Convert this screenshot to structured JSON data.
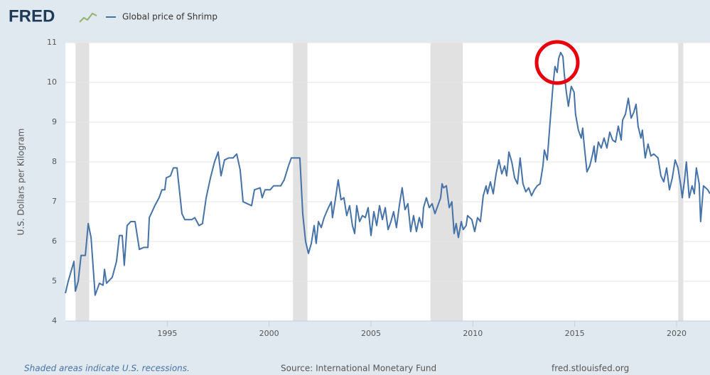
{
  "chart_data": {
    "type": "line",
    "logo": "FRED",
    "ylabel": "U.S. Dollars per Kilogram",
    "footnote": "Shaded areas indicate U.S. recessions.",
    "source": "Source: International Monetary Fund",
    "site": "fred.stlouisfed.org",
    "xlim": [
      1990,
      2021.64
    ],
    "ylim": [
      4,
      11
    ],
    "xticks": [
      1995,
      2000,
      2005,
      2010,
      2015,
      2020
    ],
    "yticks": [
      4,
      5,
      6,
      7,
      8,
      9,
      10,
      11
    ],
    "grid": true,
    "recession_color": "#e1e1e1",
    "recessions": [
      [
        1990.5,
        1991.17
      ],
      [
        2001.17,
        2001.88
      ],
      [
        2007.92,
        2009.5
      ],
      [
        2020.08,
        2020.33
      ]
    ],
    "x": [
      1990.0,
      1990.14,
      1990.42,
      1990.49,
      1990.63,
      1990.77,
      1990.98,
      1991.12,
      1991.26,
      1991.46,
      1991.67,
      1991.85,
      1991.92,
      1992.02,
      1992.3,
      1992.51,
      1992.65,
      1992.79,
      1992.89,
      1993.03,
      1993.21,
      1993.42,
      1993.63,
      1993.84,
      1994.05,
      1994.12,
      1994.39,
      1994.6,
      1994.74,
      1994.88,
      1994.95,
      1995.16,
      1995.3,
      1995.48,
      1995.72,
      1995.86,
      1996.21,
      1996.35,
      1996.56,
      1996.73,
      1996.91,
      1997.12,
      1997.32,
      1997.5,
      1997.64,
      1997.81,
      1998.02,
      1998.23,
      1998.41,
      1998.58,
      1998.72,
      1998.93,
      1999.14,
      1999.28,
      1999.56,
      1999.66,
      1999.8,
      2000.05,
      2000.22,
      2000.57,
      2000.74,
      2000.95,
      2001.09,
      2001.51,
      2001.65,
      2001.79,
      2001.93,
      2002.07,
      2002.21,
      2002.31,
      2002.42,
      2002.56,
      2002.7,
      2002.91,
      2003.05,
      2003.11,
      2003.25,
      2003.39,
      2003.53,
      2003.67,
      2003.81,
      2003.95,
      2004.09,
      2004.2,
      2004.3,
      2004.44,
      2004.58,
      2004.72,
      2004.86,
      2005.0,
      2005.14,
      2005.28,
      2005.42,
      2005.56,
      2005.7,
      2005.84,
      2005.98,
      2006.11,
      2006.25,
      2006.39,
      2006.53,
      2006.67,
      2006.81,
      2006.95,
      2007.09,
      2007.23,
      2007.37,
      2007.51,
      2007.58,
      2007.72,
      2007.86,
      2008.0,
      2008.14,
      2008.28,
      2008.42,
      2008.49,
      2008.56,
      2008.7,
      2008.84,
      2008.97,
      2009.08,
      2009.18,
      2009.29,
      2009.43,
      2009.53,
      2009.67,
      2009.74,
      2009.95,
      2010.09,
      2010.23,
      2010.37,
      2010.51,
      2010.65,
      2010.72,
      2010.86,
      2011.0,
      2011.14,
      2011.28,
      2011.42,
      2011.56,
      2011.66,
      2011.77,
      2011.91,
      2012.05,
      2012.19,
      2012.32,
      2012.46,
      2012.6,
      2012.74,
      2012.88,
      2013.02,
      2013.16,
      2013.3,
      2013.44,
      2013.51,
      2013.65,
      2013.79,
      2013.93,
      2014.03,
      2014.14,
      2014.21,
      2014.31,
      2014.42,
      2014.49,
      2014.59,
      2014.69,
      2014.83,
      2014.97,
      2015.04,
      2015.18,
      2015.32,
      2015.39,
      2015.46,
      2015.6,
      2015.74,
      2015.88,
      2015.95,
      2016.02,
      2016.16,
      2016.3,
      2016.44,
      2016.58,
      2016.72,
      2016.86,
      2017.0,
      2017.14,
      2017.28,
      2017.35,
      2017.49,
      2017.63,
      2017.77,
      2017.9,
      2018.01,
      2018.11,
      2018.25,
      2018.32,
      2018.46,
      2018.6,
      2018.74,
      2018.88,
      2019.09,
      2019.23,
      2019.37,
      2019.51,
      2019.65,
      2019.79,
      2019.93,
      2020.07,
      2020.21,
      2020.28,
      2020.38,
      2020.48,
      2020.62,
      2020.76,
      2020.87,
      2020.97,
      2021.11,
      2021.18,
      2021.32,
      2021.53,
      2021.64
    ],
    "series": [
      {
        "name": "Global price of Shrimp",
        "color": "#4572a7",
        "values": [
          4.7,
          5.0,
          5.5,
          4.75,
          5.0,
          5.65,
          5.65,
          6.45,
          6.1,
          4.65,
          4.95,
          4.9,
          5.3,
          4.95,
          5.1,
          5.5,
          6.15,
          6.15,
          5.4,
          6.4,
          6.5,
          6.5,
          5.8,
          5.85,
          5.85,
          6.6,
          6.9,
          7.1,
          7.3,
          7.3,
          7.6,
          7.65,
          7.85,
          7.85,
          6.7,
          6.55,
          6.55,
          6.6,
          6.4,
          6.45,
          7.1,
          7.6,
          8.0,
          8.25,
          7.65,
          8.05,
          8.1,
          8.1,
          8.2,
          7.8,
          7.0,
          6.95,
          6.9,
          7.3,
          7.35,
          7.1,
          7.3,
          7.3,
          7.4,
          7.4,
          7.55,
          7.9,
          8.1,
          8.1,
          6.7,
          6.0,
          5.7,
          5.95,
          6.4,
          5.95,
          6.5,
          6.35,
          6.6,
          6.85,
          7.0,
          6.6,
          7.05,
          7.55,
          7.05,
          7.1,
          6.65,
          6.9,
          6.4,
          6.2,
          6.9,
          6.5,
          6.65,
          6.6,
          6.85,
          6.15,
          6.75,
          6.4,
          6.9,
          6.55,
          6.85,
          6.3,
          6.5,
          6.75,
          6.35,
          6.9,
          7.35,
          6.8,
          6.95,
          6.25,
          6.65,
          6.25,
          6.6,
          6.35,
          6.85,
          7.1,
          6.85,
          6.95,
          6.7,
          6.9,
          7.1,
          7.45,
          7.35,
          7.4,
          6.85,
          7.0,
          6.2,
          6.45,
          6.1,
          6.5,
          6.3,
          6.4,
          6.65,
          6.55,
          6.25,
          6.6,
          6.5,
          7.15,
          7.4,
          7.2,
          7.5,
          7.2,
          7.7,
          8.05,
          7.7,
          7.9,
          7.65,
          8.25,
          8.0,
          7.6,
          7.45,
          8.1,
          7.45,
          7.25,
          7.35,
          7.15,
          7.3,
          7.4,
          7.45,
          7.9,
          8.3,
          8.05,
          9.0,
          9.9,
          10.4,
          10.25,
          10.6,
          10.75,
          10.65,
          10.2,
          9.75,
          9.4,
          9.9,
          9.75,
          9.2,
          8.8,
          8.6,
          8.85,
          8.45,
          7.75,
          7.9,
          8.2,
          8.4,
          8.0,
          8.5,
          8.35,
          8.6,
          8.35,
          8.75,
          8.55,
          8.5,
          8.9,
          8.55,
          9.05,
          9.2,
          9.6,
          9.1,
          9.25,
          9.45,
          8.9,
          8.6,
          8.8,
          8.1,
          8.45,
          8.15,
          8.2,
          8.1,
          7.65,
          7.5,
          7.85,
          7.3,
          7.6,
          8.05,
          7.85,
          7.4,
          7.1,
          7.5,
          8.0,
          7.1,
          7.4,
          7.2,
          7.85,
          7.45,
          6.5,
          7.4,
          7.3,
          7.2
        ]
      }
    ]
  }
}
